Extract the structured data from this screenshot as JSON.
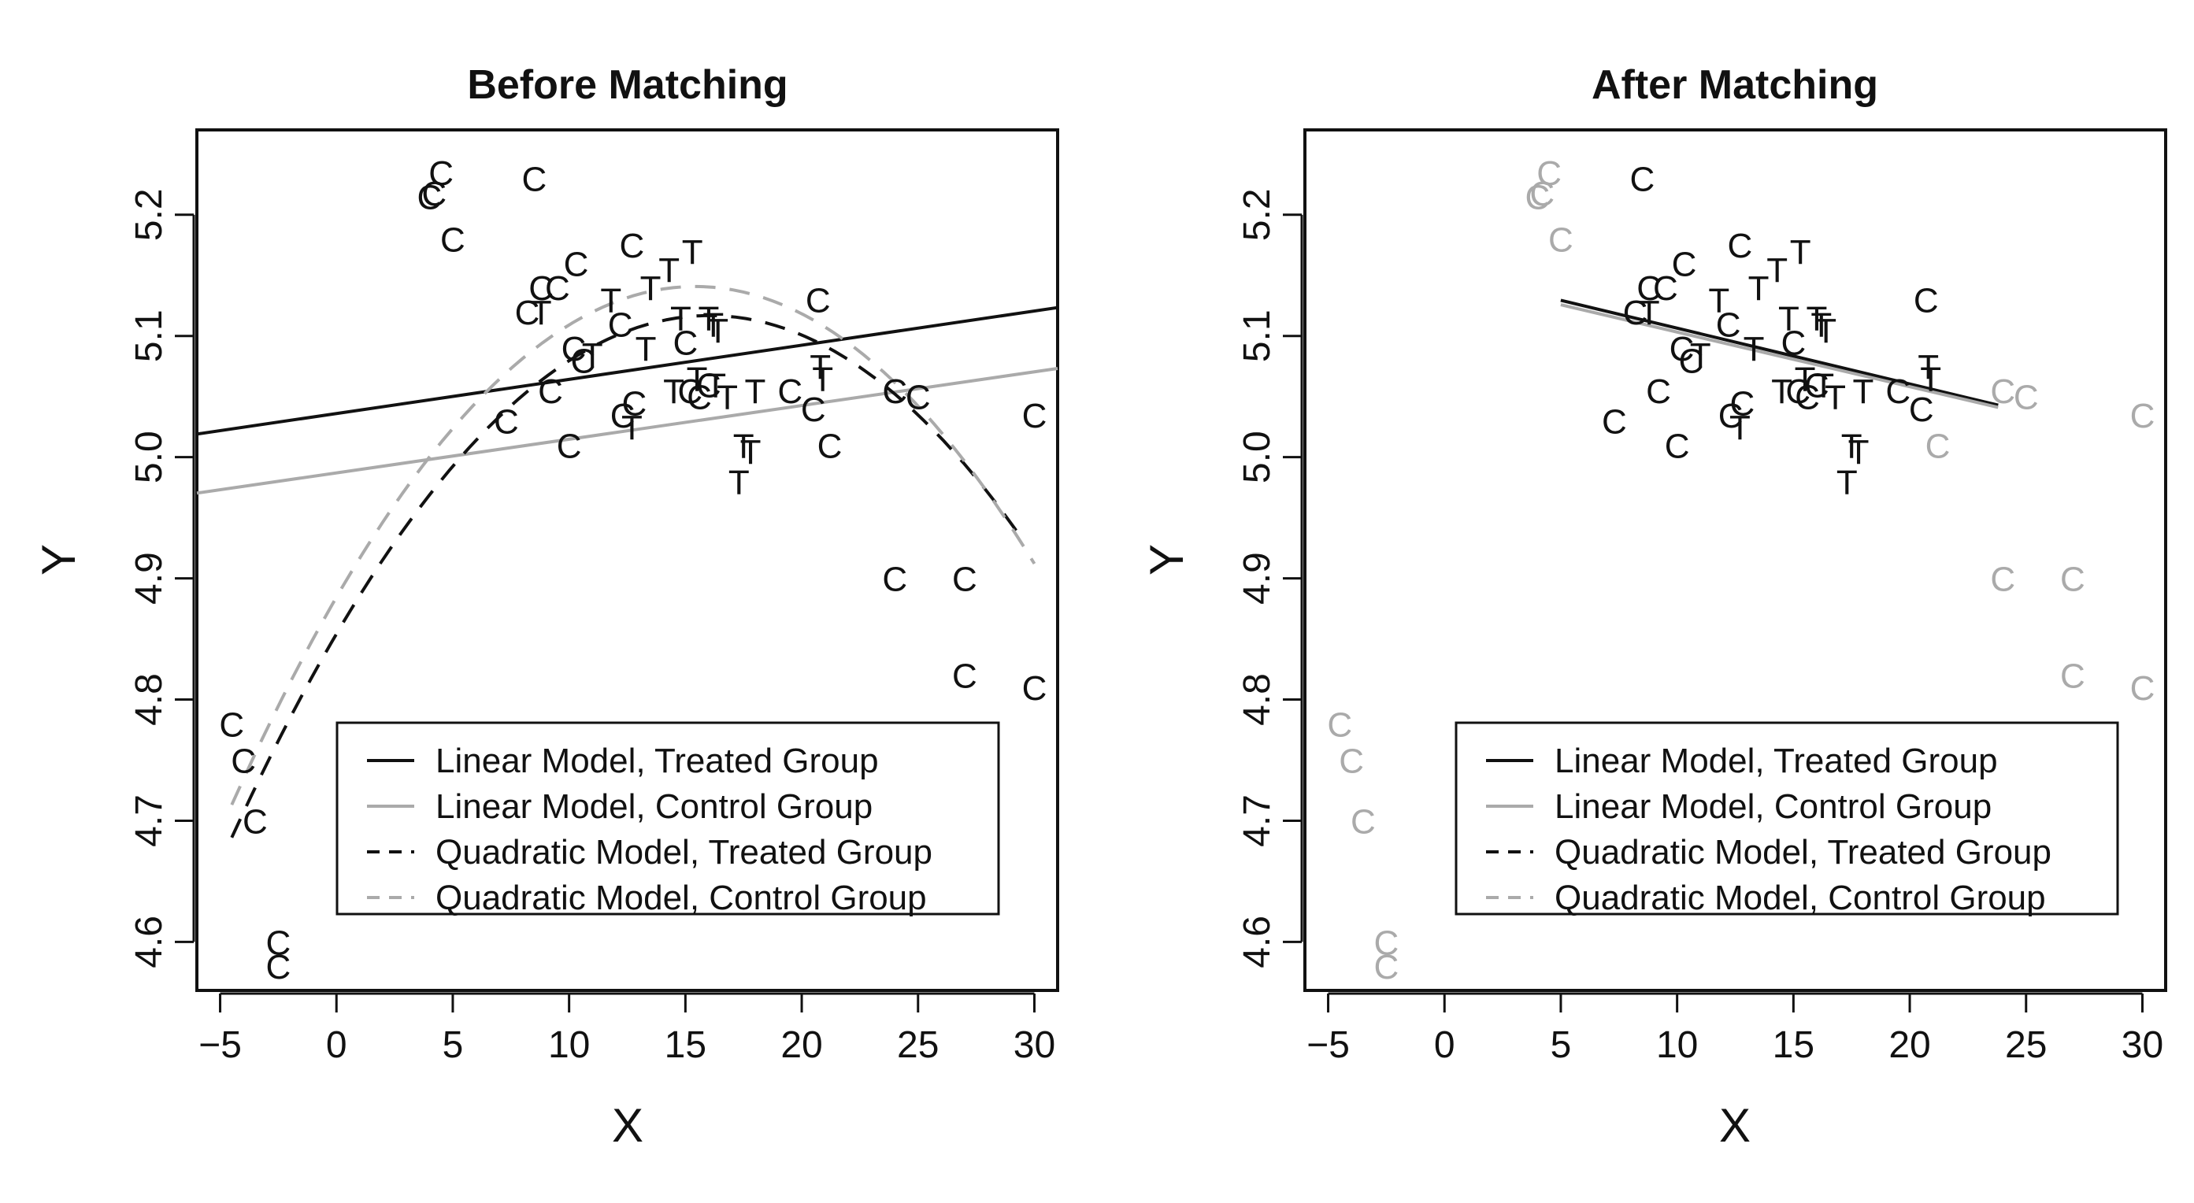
{
  "chart_data": [
    {
      "type": "scatter",
      "title": "Before Matching",
      "xlabel": "X",
      "ylabel": "Y",
      "xlim": [
        -6,
        31
      ],
      "ylim": [
        4.56,
        5.27
      ],
      "xticks": [
        -5,
        0,
        5,
        10,
        15,
        20,
        25,
        30
      ],
      "yticks": [
        4.6,
        4.7,
        4.8,
        4.9,
        5.0,
        5.1,
        5.2
      ],
      "legend_position": "bottom-right",
      "points": [
        {
          "x": 4.0,
          "y": 5.215,
          "label": "C",
          "color": "#111111"
        },
        {
          "x": 4.2,
          "y": 5.218,
          "label": "C",
          "color": "#111111"
        },
        {
          "x": 4.5,
          "y": 5.235,
          "label": "C",
          "color": "#111111"
        },
        {
          "x": 5.0,
          "y": 5.18,
          "label": "C",
          "color": "#111111"
        },
        {
          "x": 8.5,
          "y": 5.23,
          "label": "C",
          "color": "#111111"
        },
        {
          "x": 8.8,
          "y": 5.14,
          "label": "C",
          "color": "#111111"
        },
        {
          "x": 9.5,
          "y": 5.14,
          "label": "C",
          "color": "#111111"
        },
        {
          "x": 10.3,
          "y": 5.16,
          "label": "C",
          "color": "#111111"
        },
        {
          "x": 8.2,
          "y": 5.12,
          "label": "C",
          "color": "#111111"
        },
        {
          "x": 12.2,
          "y": 5.11,
          "label": "C",
          "color": "#111111"
        },
        {
          "x": 12.7,
          "y": 5.175,
          "label": "C",
          "color": "#111111"
        },
        {
          "x": 10.2,
          "y": 5.09,
          "label": "C",
          "color": "#111111"
        },
        {
          "x": 10.6,
          "y": 5.08,
          "label": "C",
          "color": "#111111"
        },
        {
          "x": 9.2,
          "y": 5.055,
          "label": "C",
          "color": "#111111"
        },
        {
          "x": 7.3,
          "y": 5.03,
          "label": "C",
          "color": "#111111"
        },
        {
          "x": 10.0,
          "y": 5.01,
          "label": "C",
          "color": "#111111"
        },
        {
          "x": 12.3,
          "y": 5.035,
          "label": "C",
          "color": "#111111"
        },
        {
          "x": 12.8,
          "y": 5.045,
          "label": "C",
          "color": "#111111"
        },
        {
          "x": 15.0,
          "y": 5.095,
          "label": "C",
          "color": "#111111"
        },
        {
          "x": 15.2,
          "y": 5.055,
          "label": "C",
          "color": "#111111"
        },
        {
          "x": 15.6,
          "y": 5.05,
          "label": "C",
          "color": "#111111"
        },
        {
          "x": 16.0,
          "y": 5.06,
          "label": "C",
          "color": "#111111"
        },
        {
          "x": 19.5,
          "y": 5.055,
          "label": "C",
          "color": "#111111"
        },
        {
          "x": 20.5,
          "y": 5.04,
          "label": "C",
          "color": "#111111"
        },
        {
          "x": 20.7,
          "y": 5.13,
          "label": "C",
          "color": "#111111"
        },
        {
          "x": 21.2,
          "y": 5.01,
          "label": "C",
          "color": "#111111"
        },
        {
          "x": 24.0,
          "y": 5.055,
          "label": "C",
          "color": "#111111"
        },
        {
          "x": 25.0,
          "y": 5.05,
          "label": "C",
          "color": "#111111"
        },
        {
          "x": 30.0,
          "y": 5.035,
          "label": "C",
          "color": "#111111"
        },
        {
          "x": 24.0,
          "y": 4.9,
          "label": "C",
          "color": "#111111"
        },
        {
          "x": 27.0,
          "y": 4.9,
          "label": "C",
          "color": "#111111"
        },
        {
          "x": 27.0,
          "y": 4.82,
          "label": "C",
          "color": "#111111"
        },
        {
          "x": 30.0,
          "y": 4.81,
          "label": "C",
          "color": "#111111"
        },
        {
          "x": -4.5,
          "y": 4.78,
          "label": "C",
          "color": "#111111"
        },
        {
          "x": -4.0,
          "y": 4.75,
          "label": "C",
          "color": "#111111"
        },
        {
          "x": -3.5,
          "y": 4.7,
          "label": "C",
          "color": "#111111"
        },
        {
          "x": -2.5,
          "y": 4.6,
          "label": "C",
          "color": "#111111"
        },
        {
          "x": -2.5,
          "y": 4.58,
          "label": "C",
          "color": "#111111"
        },
        {
          "x": 8.8,
          "y": 5.12,
          "label": "T",
          "color": "#111111"
        },
        {
          "x": 11.8,
          "y": 5.13,
          "label": "T",
          "color": "#111111"
        },
        {
          "x": 13.5,
          "y": 5.14,
          "label": "T",
          "color": "#111111"
        },
        {
          "x": 14.3,
          "y": 5.155,
          "label": "T",
          "color": "#111111"
        },
        {
          "x": 15.3,
          "y": 5.17,
          "label": "T",
          "color": "#111111"
        },
        {
          "x": 14.8,
          "y": 5.115,
          "label": "T",
          "color": "#111111"
        },
        {
          "x": 16.0,
          "y": 5.115,
          "label": "T",
          "color": "#111111"
        },
        {
          "x": 16.2,
          "y": 5.11,
          "label": "T",
          "color": "#111111"
        },
        {
          "x": 16.4,
          "y": 5.105,
          "label": "T",
          "color": "#111111"
        },
        {
          "x": 13.3,
          "y": 5.09,
          "label": "T",
          "color": "#111111"
        },
        {
          "x": 11.0,
          "y": 5.085,
          "label": "T",
          "color": "#111111"
        },
        {
          "x": 14.5,
          "y": 5.055,
          "label": "T",
          "color": "#111111"
        },
        {
          "x": 15.5,
          "y": 5.065,
          "label": "T",
          "color": "#111111"
        },
        {
          "x": 16.3,
          "y": 5.06,
          "label": "T",
          "color": "#111111"
        },
        {
          "x": 16.8,
          "y": 5.05,
          "label": "T",
          "color": "#111111"
        },
        {
          "x": 18.0,
          "y": 5.055,
          "label": "T",
          "color": "#111111"
        },
        {
          "x": 12.7,
          "y": 5.025,
          "label": "T",
          "color": "#111111"
        },
        {
          "x": 17.5,
          "y": 5.01,
          "label": "T",
          "color": "#111111"
        },
        {
          "x": 17.8,
          "y": 5.005,
          "label": "T",
          "color": "#111111"
        },
        {
          "x": 17.3,
          "y": 4.98,
          "label": "T",
          "color": "#111111"
        },
        {
          "x": 20.8,
          "y": 5.075,
          "label": "T",
          "color": "#111111"
        },
        {
          "x": 20.9,
          "y": 5.065,
          "label": "T",
          "color": "#111111"
        }
      ],
      "lines": [
        {
          "name": "Linear Model, Treated Group",
          "kind": "linear",
          "coef": [
            5.036,
            0.00282
          ],
          "x_range": [
            -6,
            31
          ],
          "color": "#111111",
          "dash": "solid"
        },
        {
          "name": "Linear Model, Control Group",
          "kind": "linear",
          "coef": [
            4.987,
            0.00278
          ],
          "x_range": [
            -6,
            31
          ],
          "color": "#aaaaaa",
          "dash": "solid"
        },
        {
          "name": "Quadratic Model, Treated Group",
          "kind": "quadratic",
          "coef": [
            4.8542,
            0.03275,
            -0.001021
          ],
          "x_range": [
            -4.5,
            29.5
          ],
          "color": "#111111",
          "dash": "dashed"
        },
        {
          "name": "Quadratic Model, Control Group",
          "kind": "quadratic",
          "coef": [
            4.8845,
            0.03323,
            -0.001077
          ],
          "x_range": [
            -4.5,
            30
          ],
          "color": "#aaaaaa",
          "dash": "dashed"
        }
      ],
      "legend": [
        {
          "label": "Linear Model, Treated Group",
          "color": "#111111",
          "dash": "solid"
        },
        {
          "label": "Linear Model, Control Group",
          "color": "#aaaaaa",
          "dash": "solid"
        },
        {
          "label": "Quadratic Model, Treated Group",
          "color": "#111111",
          "dash": "dashed"
        },
        {
          "label": "Quadratic Model, Control Group",
          "color": "#aaaaaa",
          "dash": "dashed"
        }
      ]
    },
    {
      "type": "scatter",
      "title": "After Matching",
      "xlabel": "X",
      "ylabel": "Y",
      "xlim": [
        -6,
        31
      ],
      "ylim": [
        4.56,
        5.27
      ],
      "xticks": [
        -5,
        0,
        5,
        10,
        15,
        20,
        25,
        30
      ],
      "yticks": [
        4.6,
        4.7,
        4.8,
        4.9,
        5.0,
        5.1,
        5.2
      ],
      "legend_position": "bottom-right",
      "points": [
        {
          "x": 4.0,
          "y": 5.215,
          "label": "C",
          "color": "#aaaaaa"
        },
        {
          "x": 4.2,
          "y": 5.218,
          "label": "C",
          "color": "#aaaaaa"
        },
        {
          "x": 4.5,
          "y": 5.235,
          "label": "C",
          "color": "#aaaaaa"
        },
        {
          "x": 5.0,
          "y": 5.18,
          "label": "C",
          "color": "#aaaaaa"
        },
        {
          "x": 8.5,
          "y": 5.23,
          "label": "C",
          "color": "#111111"
        },
        {
          "x": 8.8,
          "y": 5.14,
          "label": "C",
          "color": "#111111"
        },
        {
          "x": 9.5,
          "y": 5.14,
          "label": "C",
          "color": "#111111"
        },
        {
          "x": 10.3,
          "y": 5.16,
          "label": "C",
          "color": "#111111"
        },
        {
          "x": 8.2,
          "y": 5.12,
          "label": "C",
          "color": "#111111"
        },
        {
          "x": 12.2,
          "y": 5.11,
          "label": "C",
          "color": "#111111"
        },
        {
          "x": 12.7,
          "y": 5.175,
          "label": "C",
          "color": "#111111"
        },
        {
          "x": 10.2,
          "y": 5.09,
          "label": "C",
          "color": "#111111"
        },
        {
          "x": 10.6,
          "y": 5.08,
          "label": "C",
          "color": "#111111"
        },
        {
          "x": 9.2,
          "y": 5.055,
          "label": "C",
          "color": "#111111"
        },
        {
          "x": 7.3,
          "y": 5.03,
          "label": "C",
          "color": "#111111"
        },
        {
          "x": 10.0,
          "y": 5.01,
          "label": "C",
          "color": "#111111"
        },
        {
          "x": 12.3,
          "y": 5.035,
          "label": "C",
          "color": "#111111"
        },
        {
          "x": 12.8,
          "y": 5.045,
          "label": "C",
          "color": "#111111"
        },
        {
          "x": 15.0,
          "y": 5.095,
          "label": "C",
          "color": "#111111"
        },
        {
          "x": 15.2,
          "y": 5.055,
          "label": "C",
          "color": "#111111"
        },
        {
          "x": 15.6,
          "y": 5.05,
          "label": "C",
          "color": "#111111"
        },
        {
          "x": 16.0,
          "y": 5.06,
          "label": "C",
          "color": "#111111"
        },
        {
          "x": 19.5,
          "y": 5.055,
          "label": "C",
          "color": "#111111"
        },
        {
          "x": 20.5,
          "y": 5.04,
          "label": "C",
          "color": "#111111"
        },
        {
          "x": 20.7,
          "y": 5.13,
          "label": "C",
          "color": "#111111"
        },
        {
          "x": 21.2,
          "y": 5.01,
          "label": "C",
          "color": "#aaaaaa"
        },
        {
          "x": 24.0,
          "y": 5.055,
          "label": "C",
          "color": "#aaaaaa"
        },
        {
          "x": 25.0,
          "y": 5.05,
          "label": "C",
          "color": "#aaaaaa"
        },
        {
          "x": 30.0,
          "y": 5.035,
          "label": "C",
          "color": "#aaaaaa"
        },
        {
          "x": 24.0,
          "y": 4.9,
          "label": "C",
          "color": "#aaaaaa"
        },
        {
          "x": 27.0,
          "y": 4.9,
          "label": "C",
          "color": "#aaaaaa"
        },
        {
          "x": 27.0,
          "y": 4.82,
          "label": "C",
          "color": "#aaaaaa"
        },
        {
          "x": 30.0,
          "y": 4.81,
          "label": "C",
          "color": "#aaaaaa"
        },
        {
          "x": -4.5,
          "y": 4.78,
          "label": "C",
          "color": "#aaaaaa"
        },
        {
          "x": -4.0,
          "y": 4.75,
          "label": "C",
          "color": "#aaaaaa"
        },
        {
          "x": -3.5,
          "y": 4.7,
          "label": "C",
          "color": "#aaaaaa"
        },
        {
          "x": -2.5,
          "y": 4.6,
          "label": "C",
          "color": "#aaaaaa"
        },
        {
          "x": -2.5,
          "y": 4.58,
          "label": "C",
          "color": "#aaaaaa"
        },
        {
          "x": 8.8,
          "y": 5.12,
          "label": "T",
          "color": "#111111"
        },
        {
          "x": 11.8,
          "y": 5.13,
          "label": "T",
          "color": "#111111"
        },
        {
          "x": 13.5,
          "y": 5.14,
          "label": "T",
          "color": "#111111"
        },
        {
          "x": 14.3,
          "y": 5.155,
          "label": "T",
          "color": "#111111"
        },
        {
          "x": 15.3,
          "y": 5.17,
          "label": "T",
          "color": "#111111"
        },
        {
          "x": 14.8,
          "y": 5.115,
          "label": "T",
          "color": "#111111"
        },
        {
          "x": 16.0,
          "y": 5.115,
          "label": "T",
          "color": "#111111"
        },
        {
          "x": 16.2,
          "y": 5.11,
          "label": "T",
          "color": "#111111"
        },
        {
          "x": 16.4,
          "y": 5.105,
          "label": "T",
          "color": "#111111"
        },
        {
          "x": 13.3,
          "y": 5.09,
          "label": "T",
          "color": "#111111"
        },
        {
          "x": 11.0,
          "y": 5.085,
          "label": "T",
          "color": "#111111"
        },
        {
          "x": 14.5,
          "y": 5.055,
          "label": "T",
          "color": "#111111"
        },
        {
          "x": 15.5,
          "y": 5.065,
          "label": "T",
          "color": "#111111"
        },
        {
          "x": 16.3,
          "y": 5.06,
          "label": "T",
          "color": "#111111"
        },
        {
          "x": 16.8,
          "y": 5.05,
          "label": "T",
          "color": "#111111"
        },
        {
          "x": 18.0,
          "y": 5.055,
          "label": "T",
          "color": "#111111"
        },
        {
          "x": 12.7,
          "y": 5.025,
          "label": "T",
          "color": "#111111"
        },
        {
          "x": 17.5,
          "y": 5.01,
          "label": "T",
          "color": "#111111"
        },
        {
          "x": 17.8,
          "y": 5.005,
          "label": "T",
          "color": "#111111"
        },
        {
          "x": 17.3,
          "y": 4.98,
          "label": "T",
          "color": "#111111"
        },
        {
          "x": 20.8,
          "y": 5.075,
          "label": "T",
          "color": "#111111"
        },
        {
          "x": 20.9,
          "y": 5.065,
          "label": "T",
          "color": "#111111"
        }
      ],
      "lines": [
        {
          "name": "Linear Model, Treated Group",
          "kind": "linear",
          "coef": [
            5.1524,
            -0.0046
          ],
          "x_range": [
            5,
            23.8
          ],
          "color": "#111111",
          "dash": "solid"
        },
        {
          "name": "Linear Model, Control Group",
          "kind": "linear",
          "coef": [
            5.1482,
            -0.0045
          ],
          "x_range": [
            5,
            23.8
          ],
          "color": "#aaaaaa",
          "dash": "solid"
        }
      ],
      "legend": [
        {
          "label": "Linear Model, Treated Group",
          "color": "#111111",
          "dash": "solid"
        },
        {
          "label": "Linear Model, Control Group",
          "color": "#aaaaaa",
          "dash": "solid"
        },
        {
          "label": "Quadratic Model, Treated Group",
          "color": "#111111",
          "dash": "dashed"
        },
        {
          "label": "Quadratic Model, Control Group",
          "color": "#aaaaaa",
          "dash": "dashed"
        }
      ]
    }
  ]
}
